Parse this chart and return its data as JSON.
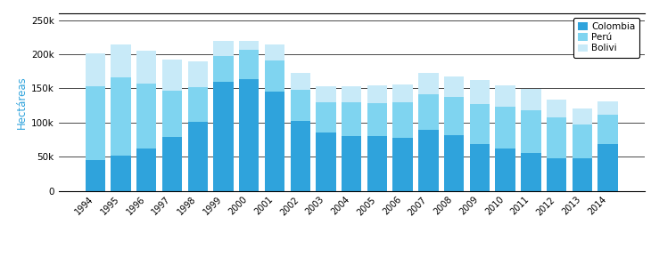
{
  "years": [
    1994,
    1995,
    1996,
    1997,
    1998,
    1999,
    2000,
    2001,
    2002,
    2003,
    2004,
    2005,
    2006,
    2007,
    2008,
    2009,
    2010,
    2011,
    2012,
    2013,
    2014
  ],
  "colombia": [
    45000,
    51000,
    62000,
    79000,
    101000,
    160000,
    163000,
    145000,
    102000,
    86000,
    80000,
    80000,
    78000,
    89000,
    81000,
    68000,
    62000,
    56000,
    48000,
    48000,
    69000
  ],
  "peru": [
    108000,
    115000,
    95000,
    68000,
    51000,
    38000,
    43000,
    46000,
    46000,
    44000,
    50000,
    48000,
    51000,
    53000,
    56000,
    59000,
    61000,
    62000,
    60000,
    49000,
    42000
  ],
  "bolivia": [
    48000,
    48000,
    48000,
    45000,
    38000,
    22000,
    14000,
    23000,
    24000,
    23000,
    23000,
    26000,
    27000,
    30000,
    30000,
    35000,
    31000,
    31000,
    25000,
    23000,
    20000
  ],
  "color_colombia": "#2fa3dc",
  "color_peru": "#7fd4f0",
  "color_bolivia": "#c8eaf8",
  "ylabel": "Hectáreas",
  "ylim": [
    0,
    260000
  ],
  "yticks": [
    0,
    50000,
    100000,
    150000,
    200000,
    250000
  ],
  "legend_labels": [
    "Colombia",
    "Perú",
    "Bolivi"
  ],
  "background_color": "#ffffff",
  "ylabel_color": "#2fa3dc"
}
